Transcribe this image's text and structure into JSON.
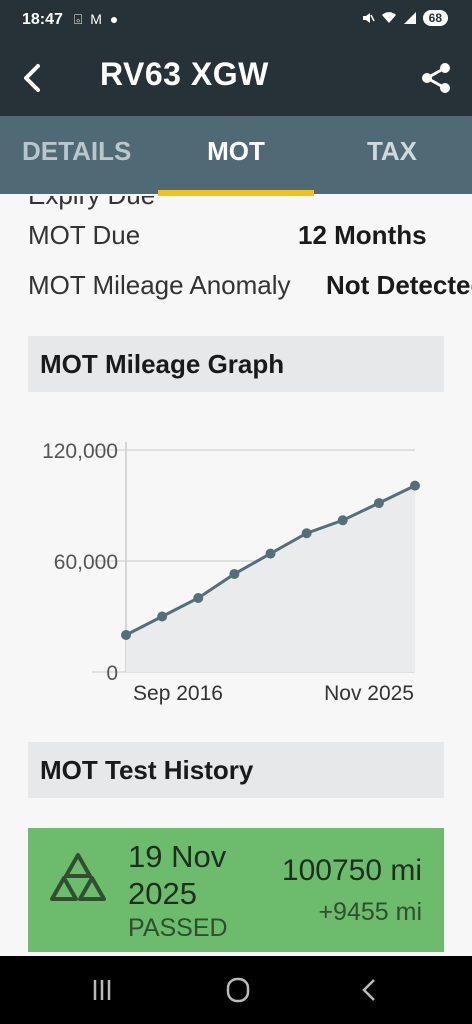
{
  "status_bar": {
    "time": "18:47",
    "left_icons": "⌻ M ●",
    "dot": "•",
    "battery": "68"
  },
  "app_bar": {
    "title": "RV63 XGW",
    "back_icon": "back-arrow-icon",
    "share_icon": "share-icon"
  },
  "tabs": [
    {
      "label": "DETAILS",
      "selected": false
    },
    {
      "label": "MOT",
      "selected": true
    },
    {
      "label": "TAX",
      "selected": false
    }
  ],
  "accent_color": "#f2c21c",
  "details": {
    "partial_row": "Expiry Due",
    "rows": [
      {
        "label": "MOT Due",
        "value": "12 Months"
      },
      {
        "label": "MOT Mileage Anomaly",
        "value": "Not Detected"
      }
    ]
  },
  "graph_section": {
    "title": "MOT Mileage Graph"
  },
  "chart_data": {
    "type": "area",
    "title": "",
    "ylim": [
      0,
      120000
    ],
    "yticks": [
      "0",
      "60,000",
      "120,000"
    ],
    "xticks": [
      "Sep 2016",
      "Nov 2025"
    ],
    "series": [
      {
        "values": [
          20000,
          30000,
          40000,
          53000,
          64000,
          75000,
          82000,
          91295,
          100750
        ]
      }
    ],
    "grid": true
  },
  "history_section": {
    "title": "MOT Test History"
  },
  "history": [
    {
      "date": "19 Nov 2025",
      "status": "PASSED",
      "mileage": "100750 mi",
      "difference": "+9455 mi",
      "color": "#6dbc6d"
    }
  ],
  "nav_bar": {
    "recents_icon": "recents-icon",
    "home_icon": "home-icon",
    "back_icon": "nav-back-icon"
  }
}
